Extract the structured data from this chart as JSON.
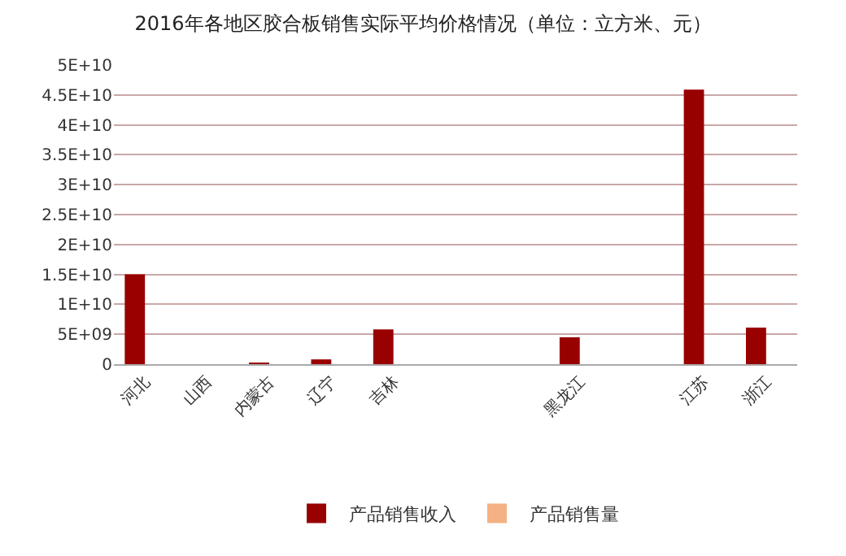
{
  "chart_data": {
    "type": "bar",
    "title": "2016年各地区胶合板销售实际平均价格情况（单位：立方米、元）",
    "categories": [
      "河北",
      "山西",
      "内蒙古",
      "辽宁",
      "吉林",
      null,
      null,
      "黑龙江",
      null,
      "江苏",
      "浙江"
    ],
    "series": [
      {
        "name": "产品销售收入",
        "color": "#990000",
        "values": [
          15000000000,
          0,
          100000000,
          800000000,
          5800000000,
          0,
          0,
          4500000000,
          0,
          45900000000,
          6100000000
        ]
      },
      {
        "name": "产品销售量",
        "color": "#f4b183",
        "values": [
          0,
          0,
          0,
          0,
          0,
          0,
          0,
          0,
          0,
          0,
          0
        ]
      }
    ],
    "ylim": [
      0,
      50000000000
    ],
    "yticks": [
      {
        "value": 0,
        "label": "0"
      },
      {
        "value": 5000000000,
        "label": "5E+09"
      },
      {
        "value": 10000000000,
        "label": "1E+10"
      },
      {
        "value": 15000000000,
        "label": "1.5E+10"
      },
      {
        "value": 20000000000,
        "label": "2E+10"
      },
      {
        "value": 25000000000,
        "label": "2.5E+10"
      },
      {
        "value": 30000000000,
        "label": "3E+10"
      },
      {
        "value": 35000000000,
        "label": "3.5E+10"
      },
      {
        "value": 40000000000,
        "label": "4E+10"
      },
      {
        "value": 45000000000,
        "label": "4.5E+10"
      },
      {
        "value": 50000000000,
        "label": "5E+10"
      }
    ],
    "grid": true,
    "legend": "bottom"
  }
}
